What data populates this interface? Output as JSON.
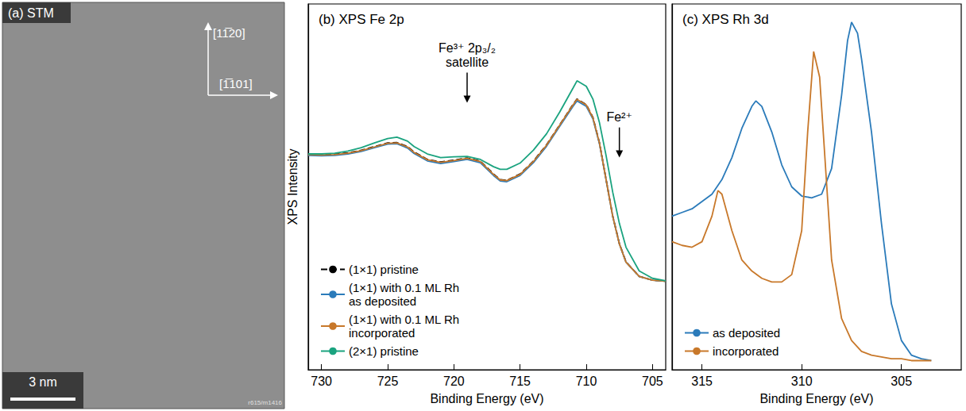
{
  "stm": {
    "title": "(a) STM",
    "scale_bar": "3 nm",
    "directions": [
      "[11̅20]",
      "[1̅101]"
    ],
    "image_id": "r615/m1416"
  },
  "chart_data": [
    {
      "type": "line",
      "title": "(b) XPS Fe 2p",
      "x_label": "Binding Energy (eV)",
      "y_label": "XPS Intensity",
      "x": [
        731,
        730,
        729,
        728,
        727,
        726,
        725,
        724.3,
        723.5,
        723,
        722,
        721,
        720,
        719,
        718,
        717,
        716.5,
        716,
        715,
        714,
        713,
        712,
        711,
        710.7,
        710,
        709.5,
        709,
        708.5,
        708,
        707.5,
        707,
        706,
        705,
        704
      ],
      "series": [
        {
          "name": "(1×1) pristine",
          "color": "#000000",
          "line_style": "dashed",
          "values": [
            58.9,
            58.8,
            58.9,
            59.3,
            60.0,
            61.0,
            62.0,
            62.1,
            61.0,
            59.5,
            57.5,
            56.8,
            57.3,
            57.9,
            57.0,
            53.5,
            52.0,
            51.8,
            53.5,
            57.0,
            61.5,
            67.0,
            72.5,
            74.0,
            72.5,
            69.0,
            62.0,
            52.0,
            42.0,
            34.5,
            29.5,
            25.5,
            24.5,
            24.2
          ]
        },
        {
          "name": "(1×1) with 0.1 ML Rh as deposited",
          "color": "#2b7bba",
          "line_style": "solid",
          "values": [
            58.6,
            58.5,
            58.6,
            59.0,
            59.7,
            60.7,
            61.7,
            61.8,
            60.6,
            59.1,
            57.1,
            56.4,
            56.9,
            57.5,
            56.6,
            53.1,
            51.6,
            51.4,
            53.1,
            56.6,
            61.1,
            66.6,
            72.0,
            73.5,
            72.0,
            68.6,
            61.7,
            51.8,
            41.9,
            34.4,
            29.4,
            25.5,
            24.5,
            24.2
          ]
        },
        {
          "name": "(1×1) with 0.1 ML Rh incorporated",
          "color": "#c8782a",
          "line_style": "solid",
          "values": [
            58.8,
            58.7,
            58.8,
            59.2,
            59.9,
            60.9,
            61.9,
            62.0,
            60.9,
            59.4,
            57.4,
            56.7,
            57.2,
            57.8,
            56.9,
            53.4,
            51.9,
            51.7,
            53.4,
            56.9,
            61.4,
            66.9,
            72.4,
            73.9,
            72.4,
            68.9,
            61.9,
            51.9,
            41.9,
            34.4,
            29.4,
            25.5,
            24.5,
            24.2
          ]
        },
        {
          "name": "(2×1) pristine",
          "color": "#1aa37f",
          "line_style": "solid",
          "values": [
            59.0,
            59.0,
            59.2,
            59.8,
            60.7,
            62.0,
            63.2,
            63.6,
            62.5,
            61.0,
            59.0,
            58.0,
            58.2,
            58.3,
            57.5,
            55.5,
            54.8,
            54.8,
            56.5,
            60.0,
            64.5,
            70.5,
            77.0,
            79.0,
            77.5,
            74.0,
            67.5,
            58.5,
            48.5,
            40.0,
            33.5,
            27.0,
            25.0,
            24.3
          ]
        }
      ],
      "xlim": [
        731,
        704
      ],
      "xticks": [
        730,
        725,
        720,
        715,
        710,
        705
      ],
      "ylim": [
        0,
        100
      ],
      "tick_labels": "x",
      "grid": false,
      "legend": "lower left",
      "annotations": [
        {
          "text": "Fe³⁺ 2p₃/₂ satellite",
          "x": 719,
          "y": 73
        },
        {
          "text": "Fe²⁺",
          "x": 707.5,
          "y": 58
        }
      ]
    },
    {
      "type": "line",
      "title": "(c) XPS Rh 3d",
      "x_label": "Binding Energy (eV)",
      "series": [
        {
          "name": "as deposited",
          "color": "#2b7bba",
          "line_style": "solid",
          "x": [
            316.5,
            316,
            315.5,
            315,
            314.5,
            314,
            313.5,
            313,
            312.5,
            312.3,
            312,
            311.5,
            311,
            310.5,
            310,
            309.5,
            309,
            308.5,
            308,
            307.7,
            307.5,
            307.2,
            307,
            306.5,
            306,
            305.5,
            305,
            304.5,
            304,
            303.5
          ],
          "values": [
            42,
            43,
            44,
            46,
            48,
            52,
            58,
            66,
            72,
            73.5,
            72,
            65,
            56,
            50,
            47.5,
            47,
            48,
            55,
            75,
            90,
            95,
            92,
            85,
            65,
            40,
            18,
            8,
            4,
            3,
            2.5
          ]
        },
        {
          "name": "incorporated",
          "color": "#c8782a",
          "line_style": "solid",
          "x": [
            316.5,
            316,
            315.5,
            315,
            314.5,
            314.2,
            314,
            313.5,
            313,
            312.5,
            312,
            311.5,
            311,
            310.5,
            310,
            309.7,
            309.4,
            309.1,
            308.8,
            308.5,
            308,
            307.5,
            307,
            306.5,
            306,
            305.5,
            305,
            304.5,
            304,
            303.5
          ],
          "values": [
            35,
            34,
            33.5,
            35,
            42,
            49,
            48,
            38,
            30,
            27,
            25,
            24,
            24,
            26,
            38,
            65,
            87,
            80,
            55,
            30,
            14,
            8,
            5,
            4,
            3.5,
            3,
            3,
            2.5,
            2.5,
            2.5
          ]
        }
      ],
      "xlim": [
        316.5,
        302
      ],
      "xticks": [
        315,
        310,
        305
      ],
      "ylim": [
        0,
        100
      ],
      "tick_labels": "x",
      "grid": false,
      "legend": "lower left"
    }
  ]
}
